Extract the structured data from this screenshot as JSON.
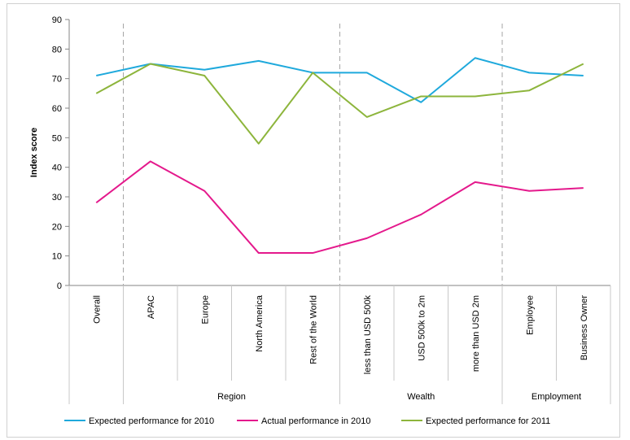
{
  "chart_data": {
    "type": "line",
    "title": "",
    "ylabel": "Index score",
    "xlabel": "",
    "ylim": [
      0,
      90
    ],
    "yticks": [
      0,
      10,
      20,
      30,
      40,
      50,
      60,
      70,
      80,
      90
    ],
    "categories": [
      "Overall",
      "APAC",
      "Europe",
      "North America",
      "Rest of the World",
      "less than USD 500k",
      "USD 500k to 2m",
      "more than USD 2m",
      "Employee",
      "Business Owner"
    ],
    "groups": [
      {
        "label": "",
        "start": 0,
        "end": 0
      },
      {
        "label": "Region",
        "start": 1,
        "end": 4
      },
      {
        "label": "Wealth",
        "start": 5,
        "end": 7
      },
      {
        "label": "Employment",
        "start": 8,
        "end": 9
      }
    ],
    "series": [
      {
        "name": "Expected performance for 2010",
        "color": "#1fa9dc",
        "values": [
          71,
          75,
          73,
          76,
          72,
          72,
          62,
          77,
          72,
          71
        ]
      },
      {
        "name": "Actual performance in 2010",
        "color": "#e4198c",
        "values": [
          28,
          42,
          32,
          11,
          11,
          16,
          24,
          35,
          32,
          33
        ]
      },
      {
        "name": "Expected performance for 2011",
        "color": "#8db53c",
        "values": [
          65,
          75,
          71,
          48,
          72,
          57,
          64,
          64,
          66,
          75
        ]
      }
    ],
    "grid": false,
    "legend_position": "bottom"
  }
}
